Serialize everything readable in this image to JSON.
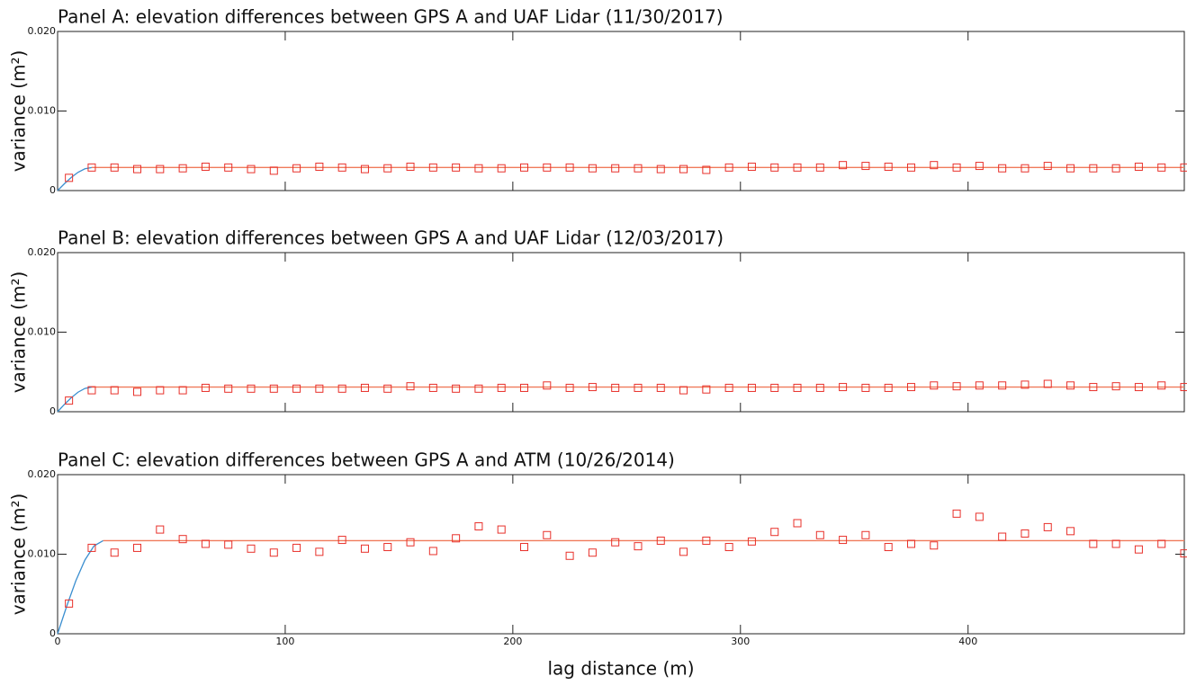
{
  "chart_data": [
    {
      "type": "scatter",
      "title": "Panel A: elevation differences between GPS A and UAF Lidar (11/30/2017)",
      "ylabel": "variance (m²)",
      "xlim": [
        0,
        495
      ],
      "ylim": [
        0,
        0.02
      ],
      "yticks": [
        0,
        {
          "value": 0.01,
          "label": "0.010"
        },
        {
          "value": 0.02,
          "label": "0.020"
        }
      ],
      "x": [
        5,
        15,
        25,
        35,
        45,
        55,
        65,
        75,
        85,
        95,
        105,
        115,
        125,
        135,
        145,
        155,
        165,
        175,
        185,
        195,
        205,
        215,
        225,
        235,
        245,
        255,
        265,
        275,
        285,
        295,
        305,
        315,
        325,
        335,
        345,
        355,
        365,
        375,
        385,
        395,
        405,
        415,
        425,
        435,
        445,
        455,
        465,
        475,
        485,
        495
      ],
      "series": [
        {
          "color": "#e8302a",
          "values": [
            0.0016,
            0.0029,
            0.0029,
            0.0027,
            0.0027,
            0.0028,
            0.003,
            0.0029,
            0.0027,
            0.0025,
            0.0028,
            0.003,
            0.0029,
            0.0027,
            0.0028,
            0.003,
            0.0029,
            0.0029,
            0.0028,
            0.0028,
            0.0029,
            0.0029,
            0.0029,
            0.0028,
            0.0028,
            0.0028,
            0.0027,
            0.0027,
            0.0026,
            0.0029,
            0.003,
            0.0029,
            0.0029,
            0.0029,
            0.0032,
            0.0031,
            0.003,
            0.0029,
            0.0032,
            0.0029,
            0.0031,
            0.0028,
            0.0028,
            0.0031,
            0.0028,
            0.0028,
            0.0028,
            0.003,
            0.0029,
            0.0029
          ]
        }
      ],
      "lines": [
        {
          "color": "#3b8fd0",
          "x": [
            0,
            3,
            6,
            9,
            12,
            15
          ],
          "values": [
            0,
            0.00086,
            0.00165,
            0.0023,
            0.00274,
            0.0029
          ]
        },
        {
          "color": "#f07a5a",
          "x": [
            15,
            495
          ],
          "values": [
            0.0029,
            0.0029
          ]
        }
      ]
    },
    {
      "type": "scatter",
      "title": "Panel B: elevation differences between GPS A and UAF Lidar (12/03/2017)",
      "ylabel": "variance (m²)",
      "xlim": [
        0,
        495
      ],
      "ylim": [
        0,
        0.02
      ],
      "yticks": [
        0,
        {
          "value": 0.01,
          "label": "0.010"
        },
        {
          "value": 0.02,
          "label": "0.020"
        }
      ],
      "x": [
        5,
        15,
        25,
        35,
        45,
        55,
        65,
        75,
        85,
        95,
        105,
        115,
        125,
        135,
        145,
        155,
        165,
        175,
        185,
        195,
        205,
        215,
        225,
        235,
        245,
        255,
        265,
        275,
        285,
        295,
        305,
        315,
        325,
        335,
        345,
        355,
        365,
        375,
        385,
        395,
        405,
        415,
        425,
        435,
        445,
        455,
        465,
        475,
        485,
        495
      ],
      "series": [
        {
          "color": "#e8302a",
          "values": [
            0.0014,
            0.0027,
            0.0027,
            0.0025,
            0.0027,
            0.0027,
            0.003,
            0.0029,
            0.0029,
            0.0029,
            0.0029,
            0.0029,
            0.0029,
            0.003,
            0.0029,
            0.0032,
            0.003,
            0.0029,
            0.0029,
            0.003,
            0.003,
            0.0033,
            0.003,
            0.0031,
            0.003,
            0.003,
            0.003,
            0.0027,
            0.0028,
            0.003,
            0.003,
            0.003,
            0.003,
            0.003,
            0.0031,
            0.003,
            0.003,
            0.0031,
            0.0033,
            0.0032,
            0.0033,
            0.0033,
            0.0034,
            0.0035,
            0.0033,
            0.0031,
            0.0032,
            0.0031,
            0.0033,
            0.0031
          ]
        }
      ],
      "lines": [
        {
          "color": "#3b8fd0",
          "x": [
            0,
            3,
            6,
            9,
            12,
            15
          ],
          "values": [
            0,
            0.00092,
            0.00176,
            0.00246,
            0.00293,
            0.0031
          ]
        },
        {
          "color": "#f07a5a",
          "x": [
            15,
            495
          ],
          "values": [
            0.0031,
            0.0031
          ]
        }
      ]
    },
    {
      "type": "scatter",
      "title": "Panel C: elevation differences between GPS A and ATM (10/26/2014)",
      "ylabel": "variance (m²)",
      "xlabel": "lag distance (m)",
      "xlim": [
        0,
        495
      ],
      "ylim": [
        0,
        0.02
      ],
      "xticks": [
        0,
        100,
        200,
        300,
        400
      ],
      "yticks": [
        0,
        {
          "value": 0.01,
          "label": "0.010"
        },
        {
          "value": 0.02,
          "label": "0.020"
        }
      ],
      "x": [
        5,
        15,
        25,
        35,
        45,
        55,
        65,
        75,
        85,
        95,
        105,
        115,
        125,
        135,
        145,
        155,
        165,
        175,
        185,
        195,
        205,
        215,
        225,
        235,
        245,
        255,
        265,
        275,
        285,
        295,
        305,
        315,
        325,
        335,
        345,
        355,
        365,
        375,
        385,
        395,
        405,
        415,
        425,
        435,
        445,
        455,
        465,
        475,
        485,
        495
      ],
      "series": [
        {
          "color": "#e8302a",
          "values": [
            0.0038,
            0.0108,
            0.0102,
            0.0108,
            0.0131,
            0.0119,
            0.0113,
            0.0112,
            0.0107,
            0.0102,
            0.0108,
            0.0103,
            0.0118,
            0.0107,
            0.0109,
            0.0115,
            0.0104,
            0.012,
            0.0135,
            0.0131,
            0.0109,
            0.0124,
            0.0098,
            0.0102,
            0.0115,
            0.011,
            0.0117,
            0.0103,
            0.0117,
            0.0109,
            0.0116,
            0.0128,
            0.0139,
            0.0124,
            0.0118,
            0.0124,
            0.0109,
            0.0113,
            0.0111,
            0.0151,
            0.0147,
            0.0122,
            0.0126,
            0.0134,
            0.0129,
            0.0113,
            0.0113,
            0.0106,
            0.0113,
            0.0101
          ]
        }
      ],
      "lines": [
        {
          "color": "#3b8fd0",
          "x": [
            0,
            4,
            8,
            12,
            16,
            20
          ],
          "values": [
            0,
            0.00346,
            0.00665,
            0.00927,
            0.01104,
            0.0117
          ]
        },
        {
          "color": "#f07a5a",
          "x": [
            20,
            495
          ],
          "values": [
            0.0117,
            0.0117
          ]
        }
      ]
    }
  ]
}
